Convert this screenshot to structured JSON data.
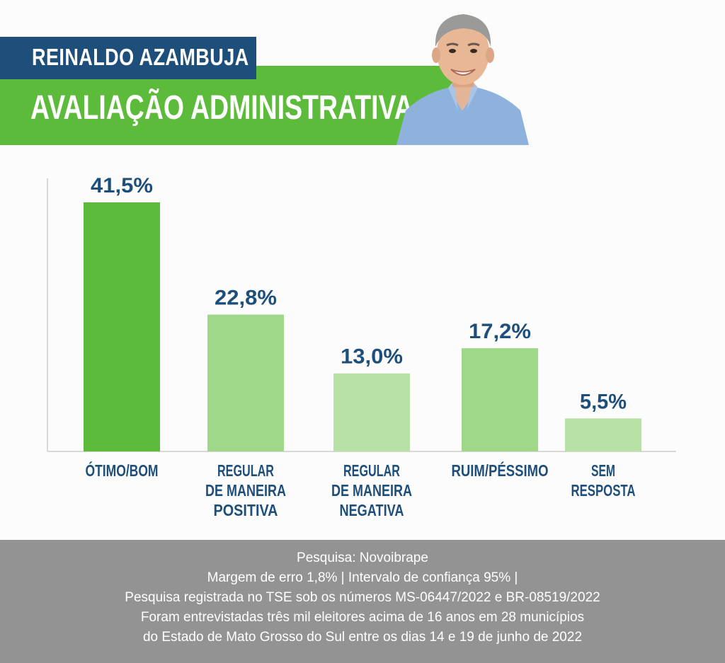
{
  "header": {
    "name": "REINALDO AZAMBUJA",
    "subtitle": "AVALIAÇÃO ADMINISTRATIVA"
  },
  "colors": {
    "brand_blue": "#1e4f7b",
    "brand_green": "#5dbb3c",
    "bar_dark": "#5dbb3c",
    "bar_mid": "#a0d88a",
    "bar_light": "#b8e1a5",
    "footer_gray": "#939393"
  },
  "chart_data": {
    "type": "bar",
    "categories": [
      "ÓTIMO/BOM",
      "REGULAR DE MANEIRA POSITIVA",
      "REGULAR DE MANEIRA NEGATIVA",
      "RUIM/PÉSSIMO",
      "SEM RESPOSTA"
    ],
    "category_lines": [
      [
        "ÓTIMO/BOM"
      ],
      [
        "REGULAR",
        "DE MANEIRA",
        "POSITIVA"
      ],
      [
        "REGULAR",
        "DE MANEIRA",
        "NEGATIVA"
      ],
      [
        "RUIM/PÉSSIMO"
      ],
      [
        "SEM",
        "RESPOSTA"
      ]
    ],
    "values": [
      41.5,
      22.8,
      13.0,
      17.2,
      5.5
    ],
    "value_labels": [
      "41,5%",
      "22,8%",
      "13,0%",
      "17,2%",
      "5,5%"
    ],
    "unit": "%",
    "ylim": [
      0,
      41.5
    ],
    "grid": false,
    "legend": "none"
  },
  "footer": {
    "lines": [
      "Pesquisa: Novoibrape",
      "Margem de erro 1,8% | Intervalo de confiança 95% |",
      "Pesquisa registrada no TSE sob os números MS-06447/2022 e BR-08519/2022",
      "Foram entrevistadas três mil eleitores acima de 16 anos em 28 municípios",
      "do Estado de Mato Grosso do Sul entre os dias 14 e 19 de junho de 2022"
    ]
  }
}
